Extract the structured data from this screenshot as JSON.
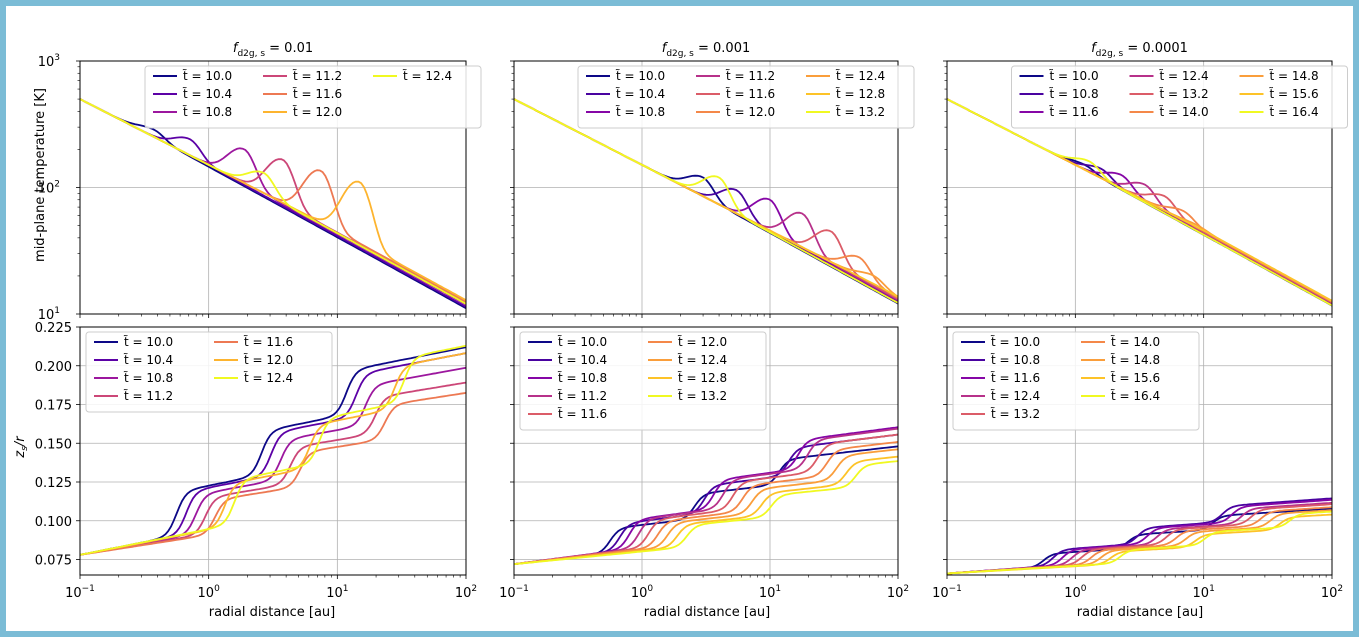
{
  "figure": {
    "ylabel_top": "mid-plane temperature [K]",
    "ylabel_bottom": "z_s/r",
    "xlabel": "radial distance [au]"
  },
  "chart_data": [
    {
      "panel": "top-left",
      "type": "line",
      "title": "f_d2g,s = 0.01",
      "title_prefix": "f",
      "title_sub": "d2g, s",
      "title_suffix": " = 0.01",
      "xlabel": "",
      "ylabel": "mid-plane temperature [K]",
      "xscale": "log",
      "yscale": "log",
      "xlim": [
        0.1,
        100
      ],
      "ylim": [
        10,
        1000
      ],
      "grid": true,
      "legend": {
        "position": "top-right",
        "columns": 3
      },
      "series": [
        {
          "name": "t̃ = 10.0",
          "color": "#0d0887",
          "r_peak": 0.38,
          "T_peak": 285
        },
        {
          "name": "t̃ = 10.4",
          "color": "#5c01a6",
          "r_peak": 0.72,
          "T_peak": 240
        },
        {
          "name": "t̃ = 10.8",
          "color": "#9c179e",
          "r_peak": 1.9,
          "T_peak": 200
        },
        {
          "name": "t̃ = 11.2",
          "color": "#cc4778",
          "r_peak": 3.8,
          "T_peak": 165
        },
        {
          "name": "t̃ = 11.6",
          "color": "#ed7953",
          "r_peak": 7.5,
          "T_peak": 135
        },
        {
          "name": "t̃ = 12.0",
          "color": "#fdb42f",
          "r_peak": 15,
          "T_peak": 110
        },
        {
          "name": "t̃ = 12.4",
          "color": "#f0f921",
          "r_peak": 2.7,
          "T_peak": 130
        }
      ]
    },
    {
      "panel": "top-middle",
      "type": "line",
      "title": "f_d2g,s = 0.001",
      "title_prefix": "f",
      "title_sub": "d2g, s",
      "title_suffix": " = 0.001",
      "xscale": "log",
      "yscale": "log",
      "xlim": [
        0.1,
        100
      ],
      "ylim": [
        10,
        1000
      ],
      "grid": true,
      "legend": {
        "position": "top-right",
        "columns": 3
      },
      "series": [
        {
          "name": "t̃ = 10.0",
          "color": "#0d0887",
          "r_peak": 3.0,
          "T_peak": 120
        },
        {
          "name": "t̃ = 10.4",
          "color": "#4903a0",
          "r_peak": 5.5,
          "T_peak": 95
        },
        {
          "name": "t̃ = 10.8",
          "color": "#8606a6",
          "r_peak": 10,
          "T_peak": 80
        },
        {
          "name": "t̃ = 11.2",
          "color": "#b7318a",
          "r_peak": 18,
          "T_peak": 62
        },
        {
          "name": "t̃ = 11.6",
          "color": "#db5c68",
          "r_peak": 30,
          "T_peak": 45
        },
        {
          "name": "t̃ = 12.0",
          "color": "#f48849",
          "r_peak": 50,
          "T_peak": 28
        },
        {
          "name": "t̃ = 12.4",
          "color": "#fa9e3b",
          "r_peak": 65,
          "T_peak": 20
        },
        {
          "name": "t̃ = 12.8",
          "color": "#fdc328",
          "r_peak": 80,
          "T_peak": 15
        },
        {
          "name": "t̃ = 13.2",
          "color": "#f0f921",
          "r_peak": 4.0,
          "T_peak": 120
        }
      ]
    },
    {
      "panel": "top-right",
      "type": "line",
      "title": "f_d2g,s = 0.0001",
      "title_prefix": "f",
      "title_sub": "d2g, s",
      "title_suffix": " = 0.0001",
      "xscale": "log",
      "yscale": "log",
      "xlim": [
        0.1,
        100
      ],
      "ylim": [
        10,
        1000
      ],
      "grid": true,
      "legend": {
        "position": "top-right",
        "columns": 3
      },
      "series": [
        {
          "name": "t̃ = 10.0",
          "color": "#0d0887",
          "r_peak": 1.2,
          "T_peak": 150
        },
        {
          "name": "t̃ = 10.8",
          "color": "#4903a0",
          "r_peak": 1.6,
          "T_peak": 140
        },
        {
          "name": "t̃ = 11.6",
          "color": "#8606a6",
          "r_peak": 2.3,
          "T_peak": 125
        },
        {
          "name": "t̃ = 12.4",
          "color": "#b7318a",
          "r_peak": 3.5,
          "T_peak": 105
        },
        {
          "name": "t̃ = 13.2",
          "color": "#db5c68",
          "r_peak": 5.0,
          "T_peak": 85
        },
        {
          "name": "t̃ = 14.0",
          "color": "#f48849",
          "r_peak": 7.0,
          "T_peak": 65
        },
        {
          "name": "t̃ = 14.8",
          "color": "#fa9e3b",
          "r_peak": 9.0,
          "T_peak": 50
        },
        {
          "name": "t̃ = 15.6",
          "color": "#fdc328",
          "r_peak": 11,
          "T_peak": 40
        },
        {
          "name": "t̃ = 16.4",
          "color": "#f0f921",
          "r_peak": 1.3,
          "T_peak": 160
        }
      ]
    },
    {
      "panel": "bottom-left",
      "type": "line",
      "xlabel": "radial distance [au]",
      "ylabel": "z_s/r",
      "xscale": "log",
      "yscale": "linear",
      "xlim": [
        0.1,
        100
      ],
      "ylim": [
        0.065,
        0.225
      ],
      "yticks": [
        0.075,
        0.1,
        0.125,
        0.15,
        0.175,
        0.2,
        0.225
      ],
      "grid": true,
      "legend": {
        "position": "top-left",
        "columns": 2
      },
      "series": [
        {
          "name": "t̃ = 10.0",
          "color": "#0d0887",
          "y_end": 0.219
        },
        {
          "name": "t̃ = 10.4",
          "color": "#5c01a6",
          "y_end": 0.215
        },
        {
          "name": "t̃ = 10.8",
          "color": "#9c179e",
          "y_end": 0.205
        },
        {
          "name": "t̃ = 11.2",
          "color": "#cc4778",
          "y_end": 0.195
        },
        {
          "name": "t̃ = 11.6",
          "color": "#ed7953",
          "y_end": 0.188
        },
        {
          "name": "t̃ = 12.0",
          "color": "#fdb42f",
          "y_end": 0.215
        },
        {
          "name": "t̃ = 12.4",
          "color": "#f0f921",
          "y_end": 0.22
        }
      ]
    },
    {
      "panel": "bottom-middle",
      "type": "line",
      "xlabel": "radial distance [au]",
      "xscale": "log",
      "yscale": "linear",
      "xlim": [
        0.1,
        100
      ],
      "ylim": [
        0.065,
        0.225
      ],
      "grid": true,
      "legend": {
        "position": "top-left",
        "columns": 2
      },
      "series": [
        {
          "name": "t̃ = 10.0",
          "color": "#0d0887",
          "y_end": 0.152
        },
        {
          "name": "t̃ = 10.4",
          "color": "#4903a0",
          "y_end": 0.16
        },
        {
          "name": "t̃ = 10.8",
          "color": "#8606a6",
          "y_end": 0.165
        },
        {
          "name": "t̃ = 11.2",
          "color": "#b7318a",
          "y_end": 0.164
        },
        {
          "name": "t̃ = 11.6",
          "color": "#db5c68",
          "y_end": 0.16
        },
        {
          "name": "t̃ = 12.0",
          "color": "#f48849",
          "y_end": 0.155
        },
        {
          "name": "t̃ = 12.4",
          "color": "#fa9e3b",
          "y_end": 0.15
        },
        {
          "name": "t̃ = 12.8",
          "color": "#fdc328",
          "y_end": 0.145
        },
        {
          "name": "t̃ = 13.2",
          "color": "#f0f921",
          "y_end": 0.142
        }
      ]
    },
    {
      "panel": "bottom-right",
      "type": "line",
      "xlabel": "radial distance [au]",
      "xscale": "log",
      "yscale": "linear",
      "xlim": [
        0.1,
        100
      ],
      "ylim": [
        0.065,
        0.225
      ],
      "grid": true,
      "legend": {
        "position": "top-left",
        "columns": 2
      },
      "series": [
        {
          "name": "t̃ = 10.0",
          "color": "#0d0887",
          "y_end": 0.11
        },
        {
          "name": "t̃ = 10.8",
          "color": "#4903a0",
          "y_end": 0.117
        },
        {
          "name": "t̃ = 11.6",
          "color": "#8606a6",
          "y_end": 0.116
        },
        {
          "name": "t̃ = 12.4",
          "color": "#b7318a",
          "y_end": 0.114
        },
        {
          "name": "t̃ = 13.2",
          "color": "#db5c68",
          "y_end": 0.113
        },
        {
          "name": "t̃ = 14.0",
          "color": "#f48849",
          "y_end": 0.111
        },
        {
          "name": "t̃ = 14.8",
          "color": "#fa9e3b",
          "y_end": 0.109
        },
        {
          "name": "t̃ = 15.6",
          "color": "#fdc328",
          "y_end": 0.106
        },
        {
          "name": "t̃ = 16.4",
          "color": "#f0f921",
          "y_end": 0.108
        }
      ]
    }
  ]
}
